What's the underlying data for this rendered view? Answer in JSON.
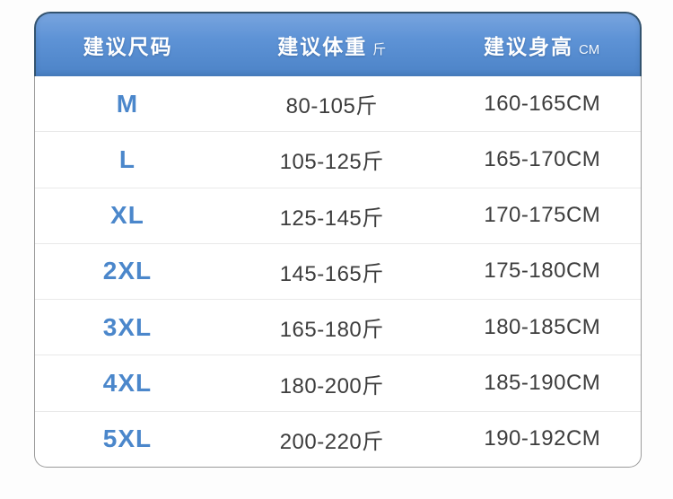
{
  "page": {
    "background": "#fdfdfd"
  },
  "colors": {
    "header_gradient_top": "#78a4de",
    "header_gradient_bottom": "#4c83c7",
    "header_border": "#33536f",
    "header_text": "#ffffff",
    "size_label_text": "#4b87cb",
    "value_text": "#3d3d3d",
    "row_divider": "#e9e9e9",
    "body_border": "#9b9b9b"
  },
  "table": {
    "columns": [
      {
        "label": "建议尺码",
        "unit": ""
      },
      {
        "label": "建议体重",
        "unit": "斤"
      },
      {
        "label": "建议身高",
        "unit": "CM"
      }
    ],
    "rows": [
      {
        "size": "M",
        "weight": "80-105斤",
        "height": "160-165CM"
      },
      {
        "size": "L",
        "weight": "105-125斤",
        "height": "165-170CM"
      },
      {
        "size": "XL",
        "weight": "125-145斤",
        "height": "170-175CM"
      },
      {
        "size": "2XL",
        "weight": "145-165斤",
        "height": "175-180CM"
      },
      {
        "size": "3XL",
        "weight": "165-180斤",
        "height": "180-185CM"
      },
      {
        "size": "4XL",
        "weight": "180-200斤",
        "height": "185-190CM"
      },
      {
        "size": "5XL",
        "weight": "200-220斤",
        "height": "190-192CM"
      }
    ]
  },
  "chart_data": {
    "type": "table",
    "title": "服装尺码建议表 (apparel size recommendation chart)",
    "columns": [
      "建议尺码",
      "建议体重 (斤)",
      "建议身高 (CM)"
    ],
    "rows": [
      [
        "M",
        "80-105斤",
        "160-165CM"
      ],
      [
        "L",
        "105-125斤",
        "165-170CM"
      ],
      [
        "XL",
        "125-145斤",
        "170-175CM"
      ],
      [
        "2XL",
        "145-165斤",
        "175-180CM"
      ],
      [
        "3XL",
        "165-180斤",
        "180-185CM"
      ],
      [
        "4XL",
        "180-200斤",
        "185-190CM"
      ],
      [
        "5XL",
        "200-220斤",
        "190-192CM"
      ]
    ],
    "weight_ranges_jin": [
      [
        80,
        105
      ],
      [
        105,
        125
      ],
      [
        125,
        145
      ],
      [
        145,
        165
      ],
      [
        165,
        180
      ],
      [
        180,
        200
      ],
      [
        200,
        220
      ]
    ],
    "height_ranges_cm": [
      [
        160,
        165
      ],
      [
        165,
        170
      ],
      [
        170,
        175
      ],
      [
        175,
        180
      ],
      [
        180,
        185
      ],
      [
        185,
        190
      ],
      [
        190,
        192
      ]
    ]
  }
}
